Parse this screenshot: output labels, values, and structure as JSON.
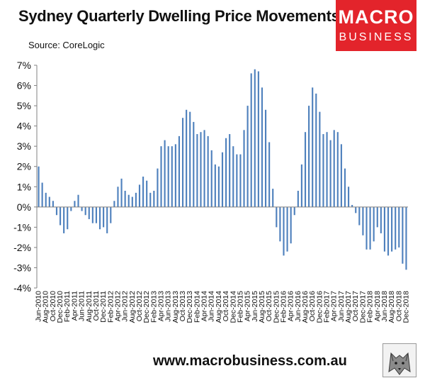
{
  "header": {
    "title": "Sydney Quarterly Dwelling Price Movements",
    "source": "Source: CoreLogic"
  },
  "logo": {
    "line1": "MACRO",
    "line2": "BUSINESS"
  },
  "footer": {
    "url": "www.macrobusiness.com.au"
  },
  "colors": {
    "bar": "#4f81bd",
    "logo_bg": "#e3242b",
    "axis": "#808080"
  },
  "icons": {
    "footer_logo": "wolf-icon"
  },
  "chart_data": {
    "type": "bar",
    "ylim": [
      -4,
      7
    ],
    "yticks": [
      "-4%",
      "-3%",
      "-2%",
      "-1%",
      "0%",
      "1%",
      "2%",
      "3%",
      "4%",
      "5%",
      "6%",
      "7%"
    ],
    "grid": false,
    "legend": "none",
    "categories": [
      "Jun-2010",
      "Jul-2010",
      "Aug-2010",
      "Sep-2010",
      "Oct-2010",
      "Nov-2010",
      "Dec-2010",
      "Jan-2011",
      "Feb-2011",
      "Mar-2011",
      "Apr-2011",
      "May-2011",
      "Jun-2011",
      "Jul-2011",
      "Aug-2011",
      "Sep-2011",
      "Oct-2011",
      "Nov-2011",
      "Dec-2011",
      "Jan-2012",
      "Feb-2012",
      "Mar-2012",
      "Apr-2012",
      "May-2012",
      "Jun-2012",
      "Jul-2012",
      "Aug-2012",
      "Sep-2012",
      "Oct-2012",
      "Nov-2012",
      "Dec-2012",
      "Jan-2013",
      "Feb-2013",
      "Mar-2013",
      "Apr-2013",
      "May-2013",
      "Jun-2013",
      "Jul-2013",
      "Aug-2013",
      "Sep-2013",
      "Oct-2013",
      "Nov-2013",
      "Dec-2013",
      "Jan-2014",
      "Feb-2014",
      "Mar-2014",
      "Apr-2014",
      "May-2014",
      "Jun-2014",
      "Jul-2014",
      "Aug-2014",
      "Sep-2014",
      "Oct-2014",
      "Nov-2014",
      "Dec-2014",
      "Jan-2015",
      "Feb-2015",
      "Mar-2015",
      "Apr-2015",
      "May-2015",
      "Jun-2015",
      "Jul-2015",
      "Aug-2015",
      "Sep-2015",
      "Oct-2015",
      "Nov-2015",
      "Dec-2015",
      "Jan-2016",
      "Feb-2016",
      "Mar-2016",
      "Apr-2016",
      "May-2016",
      "Jun-2016",
      "Jul-2016",
      "Aug-2016",
      "Sep-2016",
      "Oct-2016",
      "Nov-2016",
      "Dec-2016",
      "Jan-2017",
      "Feb-2017",
      "Mar-2017",
      "Apr-2017",
      "May-2017",
      "Jun-2017",
      "Jul-2017",
      "Aug-2017",
      "Sep-2017",
      "Oct-2017",
      "Nov-2017",
      "Dec-2017",
      "Jan-2018",
      "Feb-2018",
      "Mar-2018",
      "Apr-2018",
      "May-2018",
      "Jun-2018",
      "Jul-2018",
      "Aug-2018",
      "Sep-2018",
      "Oct-2018",
      "Nov-2018",
      "Dec-2018"
    ],
    "xtick_labels": [
      "Jun-2010",
      "Aug-2010",
      "Oct-2010",
      "Dec-2010",
      "Feb-2011",
      "Apr-2011",
      "Jun-2011",
      "Aug-2011",
      "Oct-2011",
      "Dec-2011",
      "Feb-2012",
      "Apr-2012",
      "Jun-2012",
      "Aug-2012",
      "Oct-2012",
      "Dec-2012",
      "Feb-2013",
      "Apr-2013",
      "Jun-2013",
      "Aug-2013",
      "Oct-2013",
      "Dec-2013",
      "Feb-2014",
      "Apr-2014",
      "Jun-2014",
      "Aug-2014",
      "Oct-2014",
      "Dec-2014",
      "Feb-2015",
      "Apr-2015",
      "Jun-2015",
      "Aug-2015",
      "Oct-2015",
      "Dec-2015",
      "Feb-2016",
      "Apr-2016",
      "Jun-2016",
      "Aug-2016",
      "Oct-2016",
      "Dec-2016",
      "Feb-2017",
      "Apr-2017",
      "Jun-2017",
      "Aug-2017",
      "Oct-2017",
      "Dec-2017",
      "Feb-2018",
      "Apr-2018",
      "Jun-2018",
      "Aug-2018",
      "Oct-2018",
      "Dec-2018"
    ],
    "values": [
      2.0,
      1.2,
      0.7,
      0.5,
      0.3,
      -0.4,
      -0.9,
      -1.3,
      -1.1,
      -0.2,
      0.3,
      0.6,
      -0.2,
      -0.4,
      -0.6,
      -0.8,
      -0.8,
      -1.1,
      -1.0,
      -1.3,
      -0.8,
      0.3,
      1.0,
      1.4,
      0.8,
      0.6,
      0.5,
      0.7,
      1.1,
      1.5,
      1.3,
      0.7,
      0.8,
      1.9,
      3.0,
      3.3,
      3.0,
      3.0,
      3.1,
      3.5,
      4.4,
      4.8,
      4.7,
      4.2,
      3.6,
      3.7,
      3.8,
      3.5,
      2.8,
      2.1,
      2.0,
      2.7,
      3.4,
      3.6,
      3.0,
      2.6,
      2.6,
      3.8,
      5.0,
      6.6,
      6.8,
      6.7,
      5.9,
      4.8,
      3.2,
      0.9,
      -1.0,
      -1.7,
      -2.4,
      -2.2,
      -1.8,
      -0.4,
      0.8,
      2.1,
      3.7,
      5.0,
      5.9,
      5.6,
      4.7,
      3.6,
      3.7,
      3.3,
      3.8,
      3.7,
      3.1,
      1.9,
      1.0,
      0.1,
      -0.3,
      -0.9,
      -1.4,
      -2.1,
      -2.1,
      -1.7,
      -1.0,
      -1.3,
      -2.2,
      -2.4,
      -2.2,
      -2.1,
      -2.0,
      -2.8,
      -3.1
    ]
  }
}
